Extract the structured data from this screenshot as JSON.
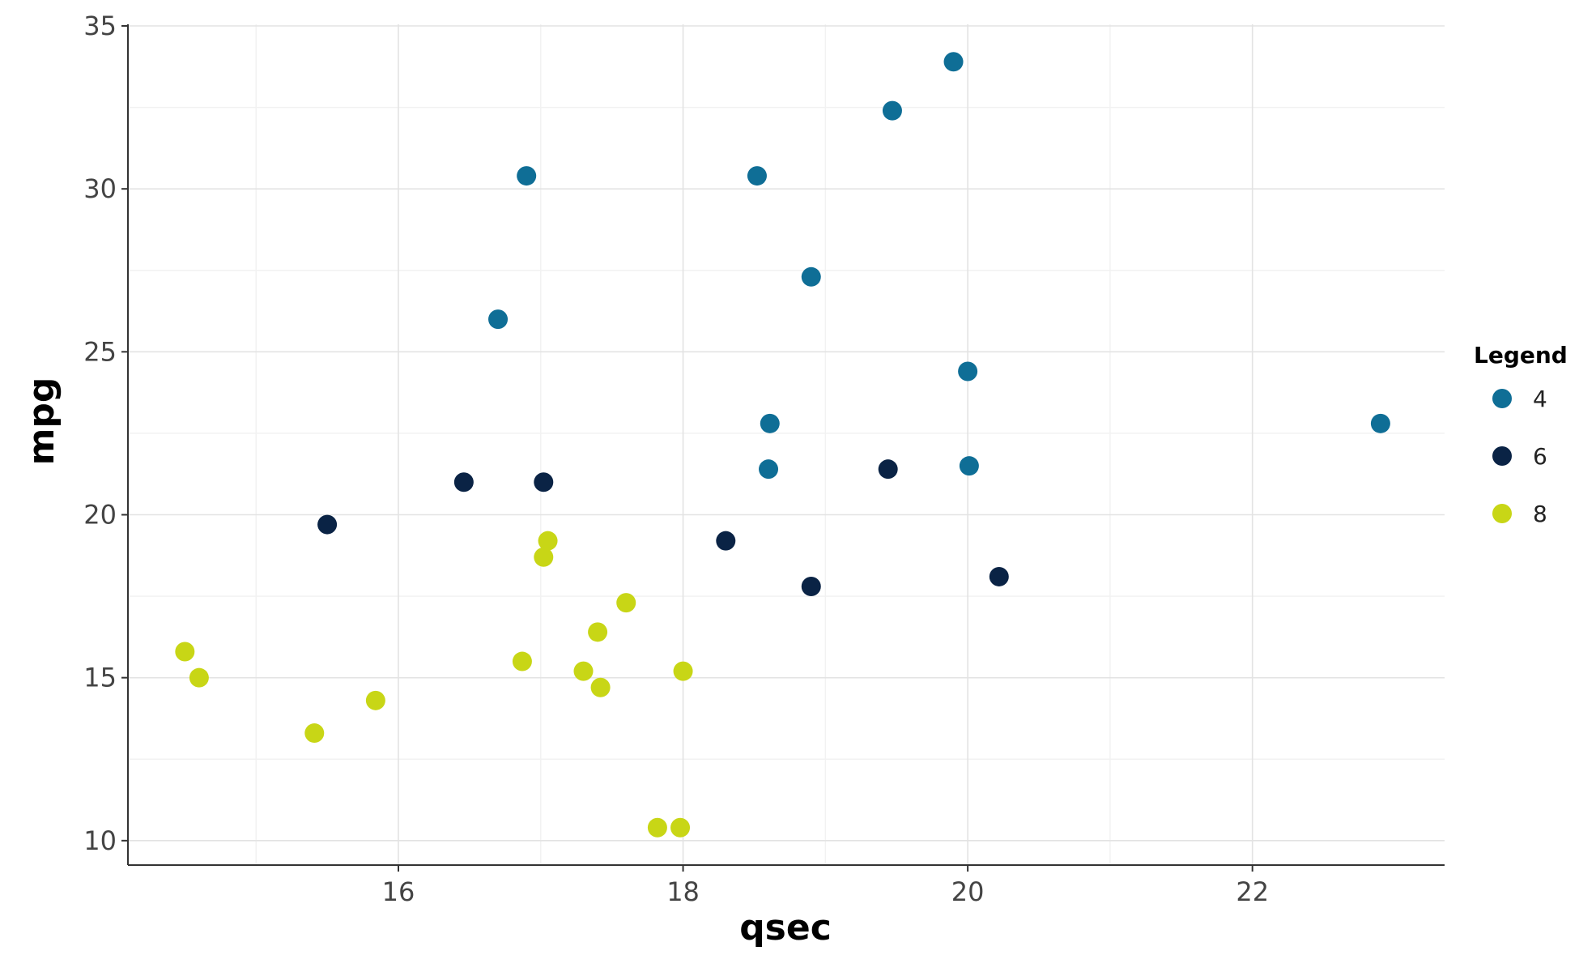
{
  "chart_data": {
    "type": "scatter",
    "title": "",
    "xlabel": "qsec",
    "ylabel": "mpg",
    "xlim": [
      14.1,
      23.35
    ],
    "ylim": [
      9.25,
      35.05
    ],
    "x_major_ticks": [
      16,
      18,
      20,
      22
    ],
    "x_minor_ticks": [
      15,
      17,
      19,
      21
    ],
    "y_major_ticks": [
      10,
      15,
      20,
      25,
      30,
      35
    ],
    "y_minor_ticks": [
      12.5,
      17.5,
      22.5,
      27.5,
      32.5
    ],
    "x_tick_labels": [
      "16",
      "18",
      "20",
      "22"
    ],
    "y_tick_labels": [
      "10",
      "15",
      "20",
      "25",
      "30",
      "35"
    ],
    "grid": true,
    "legend": {
      "title": "Legend",
      "position": "right",
      "entries": [
        "4",
        "6",
        "8"
      ]
    },
    "series": [
      {
        "name": "4",
        "color": "#0f6e96",
        "points": [
          {
            "x": 18.61,
            "y": 22.8
          },
          {
            "x": 20.0,
            "y": 24.4
          },
          {
            "x": 22.9,
            "y": 22.8
          },
          {
            "x": 19.47,
            "y": 32.4
          },
          {
            "x": 18.52,
            "y": 30.4
          },
          {
            "x": 19.9,
            "y": 33.9
          },
          {
            "x": 20.01,
            "y": 21.5
          },
          {
            "x": 18.9,
            "y": 27.3
          },
          {
            "x": 16.7,
            "y": 26.0
          },
          {
            "x": 16.9,
            "y": 30.4
          },
          {
            "x": 18.6,
            "y": 21.4
          }
        ]
      },
      {
        "name": "6",
        "color": "#0a2345",
        "points": [
          {
            "x": 16.46,
            "y": 21.0
          },
          {
            "x": 17.02,
            "y": 21.0
          },
          {
            "x": 19.44,
            "y": 21.4
          },
          {
            "x": 20.22,
            "y": 18.1
          },
          {
            "x": 18.3,
            "y": 19.2
          },
          {
            "x": 18.9,
            "y": 17.8
          },
          {
            "x": 15.5,
            "y": 19.7
          }
        ]
      },
      {
        "name": "8",
        "color": "#c8d616",
        "points": [
          {
            "x": 17.02,
            "y": 18.7
          },
          {
            "x": 15.84,
            "y": 14.3
          },
          {
            "x": 17.4,
            "y": 16.4
          },
          {
            "x": 17.6,
            "y": 17.3
          },
          {
            "x": 18.0,
            "y": 15.2
          },
          {
            "x": 17.98,
            "y": 10.4
          },
          {
            "x": 17.82,
            "y": 10.4
          },
          {
            "x": 17.42,
            "y": 14.7
          },
          {
            "x": 16.87,
            "y": 15.5
          },
          {
            "x": 17.3,
            "y": 15.2
          },
          {
            "x": 15.41,
            "y": 13.3
          },
          {
            "x": 17.05,
            "y": 19.2
          },
          {
            "x": 14.5,
            "y": 15.8
          },
          {
            "x": 14.6,
            "y": 15.0
          }
        ]
      }
    ]
  }
}
